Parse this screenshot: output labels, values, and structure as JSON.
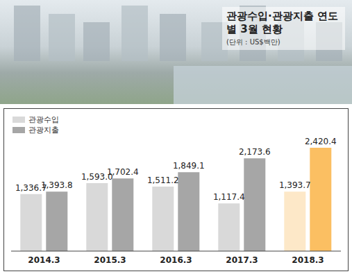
{
  "chart_data": {
    "type": "bar",
    "title": "관광수입·관광지출 연도별 3월 현황",
    "subtitle": "(단위 : US$백만)",
    "categories": [
      "2014.3",
      "2015.3",
      "2016.3",
      "2017.3",
      "2018.3"
    ],
    "series": [
      {
        "name": "관광수입",
        "color": "#d9d9d9",
        "colors": [
          "#d9d9d9",
          "#d9d9d9",
          "#d9d9d9",
          "#d9d9d9",
          "#fde8c8"
        ],
        "values": [
          1336.7,
          1593.0,
          1511.2,
          1117.4,
          1393.7
        ],
        "value_labels": [
          "1,336.7",
          "1,593.0",
          "1,511.2",
          "1,117.4",
          "1,393.7"
        ]
      },
      {
        "name": "관광지출",
        "color": "#a6a6a6",
        "colors": [
          "#a6a6a6",
          "#a6a6a6",
          "#a6a6a6",
          "#a6a6a6",
          "#fbbf62"
        ],
        "values": [
          1393.8,
          1702.4,
          1849.1,
          2173.6,
          2420.4
        ],
        "value_labels": [
          "1,393.8",
          "1,702.4",
          "1,849.1",
          "2,173.6",
          "2,420.4"
        ]
      }
    ],
    "ylim": [
      0,
      2600
    ],
    "data_labels": true,
    "tick_labels": "x",
    "legend": "top-left"
  }
}
